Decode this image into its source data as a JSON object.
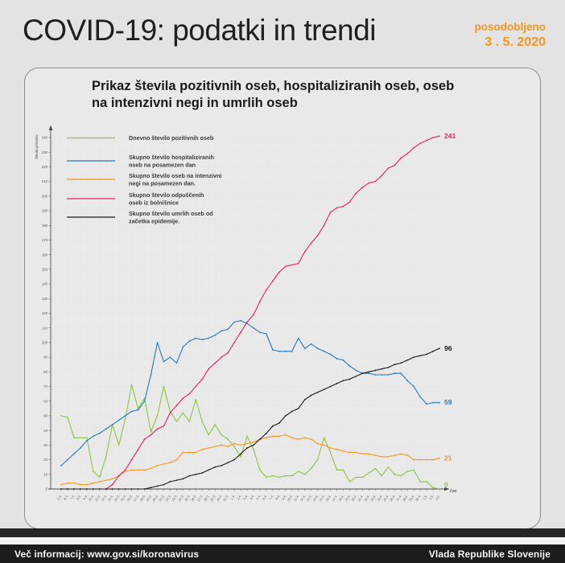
{
  "header": {
    "title": "COVID-19: podatki in trendi",
    "updated_label": "posodobljeno",
    "updated_date": "3 . 5. 2020"
  },
  "card": {
    "title_lines": [
      "Prikaz števila pozitivnih oseb, hospitaliziranih oseb, oseb",
      "na intenzivni negi in umrlih oseb"
    ]
  },
  "footer": {
    "info": "Več informacij: www.gov.si/koronavirus",
    "org": "Vlada Republike Slovenije"
  },
  "colors": {
    "accent_orange": "#f7941d",
    "page_bg": "#e3e3e3",
    "card_bg": "#e9e9e9",
    "axis": "#4a4a4a",
    "grid": "#cfcfcf",
    "tick_text": "#555555",
    "legend_text": "#3c3c3c",
    "footer_bg": "#1c1c1c"
  },
  "chart_data": {
    "type": "line",
    "title": "Prikaz števila pozitivnih oseb, hospitaliziranih oseb, oseb na intenzivni negi in umrlih oseb",
    "xlabel": "čas",
    "ylabel": "Število primerov",
    "ylim": [
      0,
      240
    ],
    "y_tick_step": 10,
    "grid": "dotted",
    "legend_position": "top-left",
    "categories": [
      "5.3.",
      "6.3.",
      "7.3.",
      "8.3.",
      "9.3.",
      "10.3.",
      "11.3.",
      "12.3.",
      "13.3.",
      "14.3.",
      "15.3.",
      "16.3.",
      "17.3.",
      "18.3.",
      "19.3.",
      "20.3.",
      "21.3.",
      "22.3.",
      "23.3.",
      "24.3.",
      "25.3.",
      "26.3.",
      "27.3.",
      "28.3.",
      "29.3.",
      "30.3.",
      "31.3.",
      "1.4.",
      "2.4.",
      "3.4.",
      "4.4.",
      "5.4.",
      "6.4.",
      "7.4.",
      "8.4.",
      "9.4.",
      "10.4.",
      "11.4.",
      "12.4.",
      "13.4.",
      "14.4.",
      "15.4.",
      "16.4.",
      "17.4.",
      "18.4.",
      "19.4.",
      "20.4.",
      "21.4.",
      "22.4.",
      "23.4.",
      "24.4.",
      "25.4.",
      "26.4.",
      "27.4.",
      "28.4.",
      "29.4.",
      "30.4.",
      "1.5.",
      "2.5.",
      "3.5."
    ],
    "series": [
      {
        "name": "Dnevno število pozitivnih oseb",
        "legend_lines": [
          "Dnevno število pozitivnih oseb"
        ],
        "color": "#8cc63e",
        "end_label": "0",
        "values": [
          50,
          49,
          35,
          35,
          35,
          12,
          8,
          22,
          44,
          30,
          48,
          71,
          55,
          62,
          39,
          50,
          70,
          53,
          46,
          52,
          46,
          61,
          46,
          37,
          44,
          37,
          34,
          29,
          22,
          36,
          27,
          13,
          8,
          9,
          8,
          9,
          9,
          12,
          10,
          14,
          20,
          35,
          25,
          13,
          13,
          5,
          8,
          8,
          11,
          14,
          9,
          15,
          10,
          9,
          12,
          13,
          5,
          5,
          1,
          0
        ]
      },
      {
        "name": "Skupno število hospitaliziranih oseb na posamezen dan",
        "legend_lines": [
          "Skupno število hospitaliziranih",
          "oseb na posamezen dan"
        ],
        "color": "#2579ba",
        "end_label": "59",
        "values": [
          16,
          20,
          24,
          28,
          33,
          36,
          38,
          41,
          44,
          47,
          50,
          53,
          54,
          60,
          78,
          100,
          87,
          90,
          86,
          97,
          101,
          103,
          102,
          103,
          105,
          108,
          109,
          114,
          115,
          113,
          110,
          107,
          106,
          95,
          94,
          94,
          94,
          103,
          96,
          99,
          96,
          94,
          92,
          89,
          88,
          84,
          81,
          79,
          79,
          78,
          78,
          78,
          79,
          79,
          74,
          70,
          63,
          58,
          59,
          59
        ]
      },
      {
        "name": "Skupno število oseb na intenzivni negi na posamezen dan.",
        "legend_lines": [
          "Skupno število oseb na intenzivni",
          "negi na posamezen dan."
        ],
        "color": "#f7941d",
        "end_label": "21",
        "values": [
          3,
          4,
          4,
          3,
          3,
          4,
          5,
          6,
          7,
          9,
          12,
          13,
          13,
          13,
          14,
          16,
          17,
          18,
          20,
          25,
          25,
          25,
          27,
          28,
          29,
          30,
          29,
          31,
          30,
          31,
          32,
          34,
          35,
          36,
          36,
          37,
          35,
          34,
          35,
          34,
          31,
          30,
          28,
          27,
          26,
          25,
          25,
          24,
          24,
          23,
          22,
          22,
          23,
          24,
          23,
          20,
          20,
          20,
          20,
          21
        ]
      },
      {
        "name": "Skupno število odpuščenih oseb iz bolnišnice",
        "legend_lines": [
          "Skupno število odpuščenih",
          "oseb iz bolnišnice"
        ],
        "color": "#ed1b63",
        "end_label": "241",
        "values": [
          0,
          0,
          0,
          0,
          0,
          0,
          0,
          0,
          3,
          9,
          13,
          20,
          27,
          34,
          37,
          41,
          43,
          52,
          57,
          62,
          65,
          70,
          75,
          82,
          86,
          90,
          93,
          100,
          107,
          114,
          119,
          128,
          136,
          142,
          148,
          152,
          153,
          154,
          162,
          168,
          173,
          180,
          189,
          192,
          193,
          196,
          202,
          206,
          209,
          210,
          214,
          219,
          221,
          226,
          229,
          233,
          236,
          238,
          240,
          241
        ]
      },
      {
        "name": "Skupno število umrlih oseb od začetka epidemije.",
        "legend_lines": [
          "Skupno število umrlih oseb od",
          "začetka epidemije."
        ],
        "color": "#1a1a1a",
        "end_label": "96",
        "values": [
          0,
          0,
          0,
          0,
          0,
          0,
          0,
          0,
          0,
          0,
          0,
          0,
          0,
          0,
          1,
          2,
          3,
          5,
          6,
          7,
          9,
          10,
          11,
          13,
          15,
          16,
          18,
          20,
          24,
          28,
          30,
          34,
          38,
          43,
          45,
          50,
          53,
          55,
          61,
          64,
          66,
          68,
          70,
          72,
          74,
          75,
          77,
          79,
          80,
          81,
          82,
          83,
          85,
          86,
          88,
          90,
          91,
          92,
          94,
          96
        ]
      }
    ]
  }
}
